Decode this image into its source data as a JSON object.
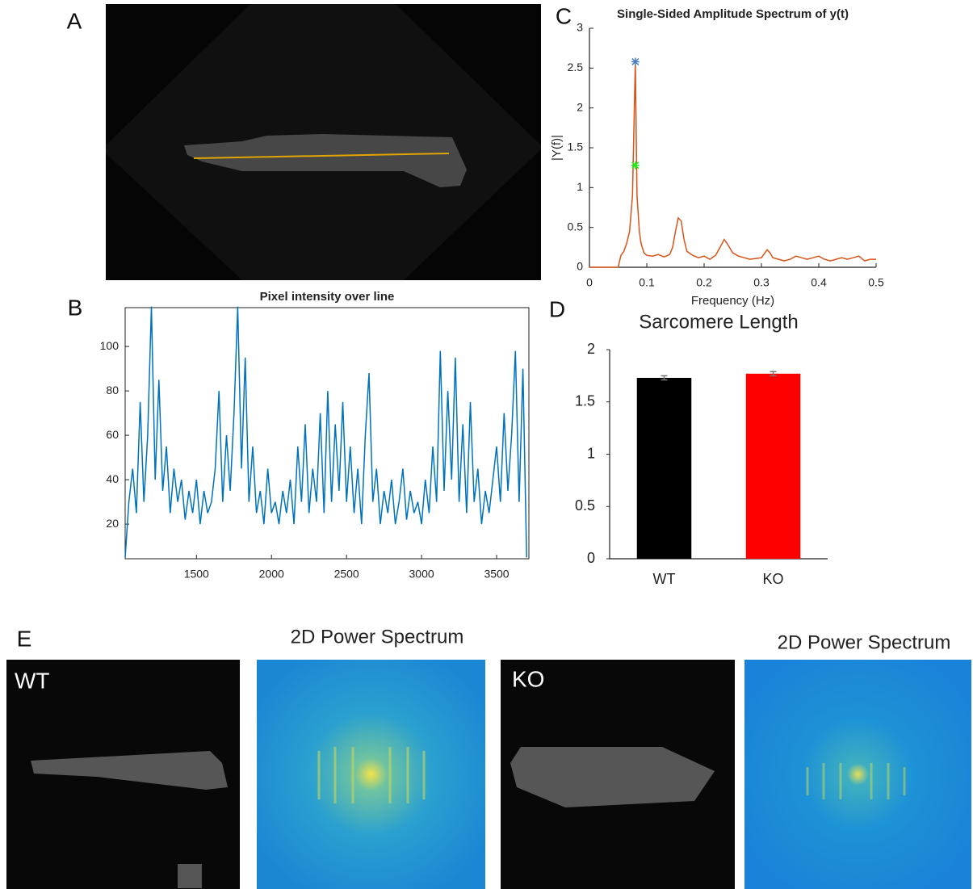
{
  "panel_labels": [
    "A",
    "B",
    "C",
    "D",
    "E"
  ],
  "images": {
    "wt_label": "WT",
    "ko_label": "KO",
    "spectrum_titles": [
      "2D Power Spectrum",
      "2D Power Spectrum"
    ]
  },
  "chart_data": [
    {
      "type": "line",
      "title": "Pixel intensity over line",
      "x": [
        1025,
        1050,
        1075,
        1100,
        1125,
        1150,
        1175,
        1200,
        1225,
        1250,
        1275,
        1300,
        1325,
        1350,
        1375,
        1400,
        1425,
        1450,
        1475,
        1500,
        1525,
        1550,
        1575,
        1600,
        1625,
        1650,
        1675,
        1700,
        1725,
        1750,
        1775,
        1800,
        1825,
        1850,
        1875,
        1900,
        1925,
        1950,
        1975,
        2000,
        2025,
        2050,
        2075,
        2100,
        2125,
        2150,
        2175,
        2200,
        2225,
        2250,
        2275,
        2300,
        2325,
        2350,
        2375,
        2400,
        2425,
        2450,
        2475,
        2500,
        2525,
        2550,
        2575,
        2600,
        2625,
        2650,
        2675,
        2700,
        2725,
        2750,
        2775,
        2800,
        2825,
        2850,
        2875,
        2900,
        2925,
        2950,
        2975,
        3000,
        3025,
        3050,
        3075,
        3100,
        3125,
        3150,
        3175,
        3200,
        3225,
        3250,
        3275,
        3300,
        3325,
        3350,
        3375,
        3400,
        3425,
        3450,
        3475,
        3500,
        3525,
        3550,
        3575,
        3600,
        3625,
        3650,
        3675,
        3700
      ],
      "series": [
        {
          "color": "#0072bd",
          "values": [
            5,
            30,
            45,
            25,
            75,
            30,
            60,
            118,
            40,
            85,
            35,
            55,
            25,
            45,
            30,
            40,
            22,
            35,
            25,
            40,
            20,
            35,
            25,
            30,
            45,
            80,
            30,
            60,
            35,
            70,
            118,
            45,
            95,
            30,
            55,
            25,
            35,
            20,
            45,
            25,
            30,
            20,
            35,
            25,
            40,
            20,
            55,
            30,
            65,
            25,
            45,
            30,
            70,
            25,
            80,
            30,
            65,
            35,
            75,
            30,
            55,
            25,
            45,
            20,
            60,
            88,
            30,
            45,
            20,
            35,
            25,
            40,
            20,
            30,
            45,
            22,
            35,
            25,
            30,
            20,
            40,
            25,
            55,
            30,
            98,
            35,
            80,
            40,
            95,
            30,
            65,
            25,
            75,
            30,
            45,
            20,
            35,
            25,
            40,
            55,
            30,
            70,
            35,
            60,
            98,
            30,
            90,
            5
          ]
        }
      ],
      "xlim": [
        1025,
        3715
      ],
      "ylim": [
        4.4,
        117.5
      ],
      "xticks": [
        1500,
        2000,
        2500,
        3000,
        3500
      ],
      "yticks": [
        20,
        40,
        60,
        80,
        100
      ]
    },
    {
      "type": "line",
      "title": "Single-Sided Amplitude Spectrum of y(t)",
      "xlabel": "Frequency (Hz)",
      "ylabel": "|Y(f)|",
      "x": [
        0,
        0.05,
        0.055,
        0.06,
        0.065,
        0.07,
        0.075,
        0.08,
        0.083,
        0.087,
        0.09,
        0.095,
        0.1,
        0.11,
        0.12,
        0.13,
        0.14,
        0.145,
        0.15,
        0.155,
        0.16,
        0.165,
        0.17,
        0.18,
        0.19,
        0.2,
        0.21,
        0.22,
        0.23,
        0.235,
        0.24,
        0.25,
        0.26,
        0.27,
        0.28,
        0.29,
        0.3,
        0.31,
        0.315,
        0.32,
        0.33,
        0.34,
        0.35,
        0.36,
        0.37,
        0.38,
        0.39,
        0.4,
        0.41,
        0.42,
        0.43,
        0.44,
        0.45,
        0.46,
        0.47,
        0.48,
        0.49,
        0.5
      ],
      "series": [
        {
          "color": "#d95319",
          "values": [
            0,
            0,
            0.15,
            0.2,
            0.3,
            0.45,
            0.9,
            2.58,
            0.9,
            0.45,
            0.3,
            0.18,
            0.15,
            0.14,
            0.16,
            0.13,
            0.16,
            0.25,
            0.45,
            0.62,
            0.58,
            0.35,
            0.2,
            0.15,
            0.12,
            0.14,
            0.1,
            0.15,
            0.28,
            0.35,
            0.3,
            0.18,
            0.14,
            0.12,
            0.1,
            0.11,
            0.12,
            0.22,
            0.18,
            0.12,
            0.1,
            0.08,
            0.1,
            0.14,
            0.12,
            0.1,
            0.12,
            0.14,
            0.1,
            0.08,
            0.1,
            0.12,
            0.1,
            0.12,
            0.14,
            0.08,
            0.1,
            0.1
          ]
        }
      ],
      "markers": [
        {
          "x": 0.08,
          "y": 2.58,
          "color": "#4a7fc1"
        },
        {
          "x": 0.08,
          "y": 1.28,
          "color": "#22ee22"
        }
      ],
      "xlim": [
        0,
        0.5
      ],
      "ylim": [
        0,
        3
      ],
      "xticks": [
        0,
        0.1,
        0.2,
        0.3,
        0.4,
        0.5
      ],
      "yticks": [
        0,
        0.5,
        1,
        1.5,
        2,
        2.5,
        3
      ]
    },
    {
      "type": "bar",
      "title": "Sarcomere Length",
      "categories": [
        "WT",
        "KO"
      ],
      "values": [
        1.73,
        1.77
      ],
      "errors": [
        0.02,
        0.02
      ],
      "colors": [
        "#000000",
        "#ff0000"
      ],
      "ylim": [
        0,
        2
      ],
      "yticks": [
        0,
        0.5,
        1,
        1.5,
        2
      ]
    }
  ]
}
